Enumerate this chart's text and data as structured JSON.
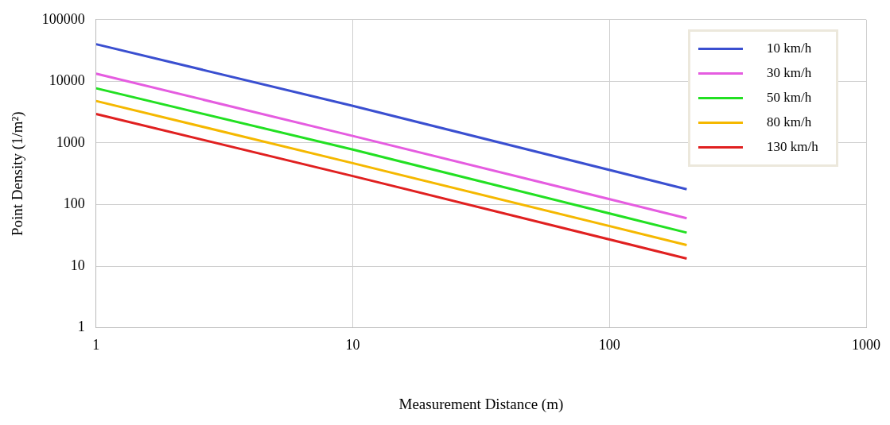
{
  "chart_data": {
    "type": "line",
    "xlabel": "Measurement Distance (m)",
    "ylabel": "Point Density (1/m²)",
    "log": "xy",
    "grid": true,
    "legend": "top right",
    "marker": "none",
    "line_style": "solid",
    "xlim": [
      1,
      1000
    ],
    "xticks": [
      1,
      10,
      100,
      1000
    ],
    "ylim": [
      1,
      100000
    ],
    "yticks": [
      1,
      10,
      100,
      1000,
      10000,
      100000
    ],
    "series": [
      {
        "name": "10 km/h",
        "color": "#3a4fd0",
        "x": [
          1,
          10,
          200
        ],
        "values": [
          40000,
          4000,
          177
        ]
      },
      {
        "name": "30 km/h",
        "color": "#e55ce0",
        "x": [
          1,
          10,
          200
        ],
        "values": [
          13300,
          1300,
          60
        ]
      },
      {
        "name": "50 km/h",
        "color": "#22e022",
        "x": [
          1,
          10,
          200
        ],
        "values": [
          7700,
          780,
          35
        ]
      },
      {
        "name": "80 km/h",
        "color": "#f5b800",
        "x": [
          1,
          10,
          200
        ],
        "values": [
          4800,
          470,
          22
        ]
      },
      {
        "name": "130 km/h",
        "color": "#e02020",
        "x": [
          1,
          10,
          200
        ],
        "values": [
          2950,
          290,
          13.3
        ]
      }
    ]
  }
}
